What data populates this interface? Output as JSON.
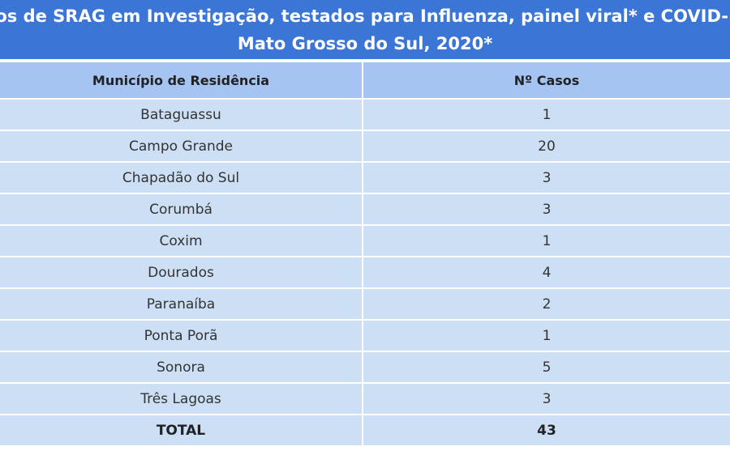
{
  "header": {
    "title_line1": "sos de SRAG em Investigação, testados para Influenza, painel viral* e COVID-",
    "title_line2": "Mato Grosso do Sul, 2020*"
  },
  "table": {
    "columns": [
      "Município de Residência",
      "Nº Casos"
    ],
    "rows": [
      [
        "Bataguassu",
        1
      ],
      [
        "Campo Grande",
        20
      ],
      [
        "Chapadão do Sul",
        3
      ],
      [
        "Corumbá",
        3
      ],
      [
        "Coxim",
        1
      ],
      [
        "Dourados",
        4
      ],
      [
        "Paranaíba",
        2
      ],
      [
        "Ponta Porã",
        1
      ],
      [
        "Sonora",
        5
      ],
      [
        "Três Lagoas",
        3
      ]
    ],
    "total": [
      "TOTAL",
      43
    ]
  }
}
